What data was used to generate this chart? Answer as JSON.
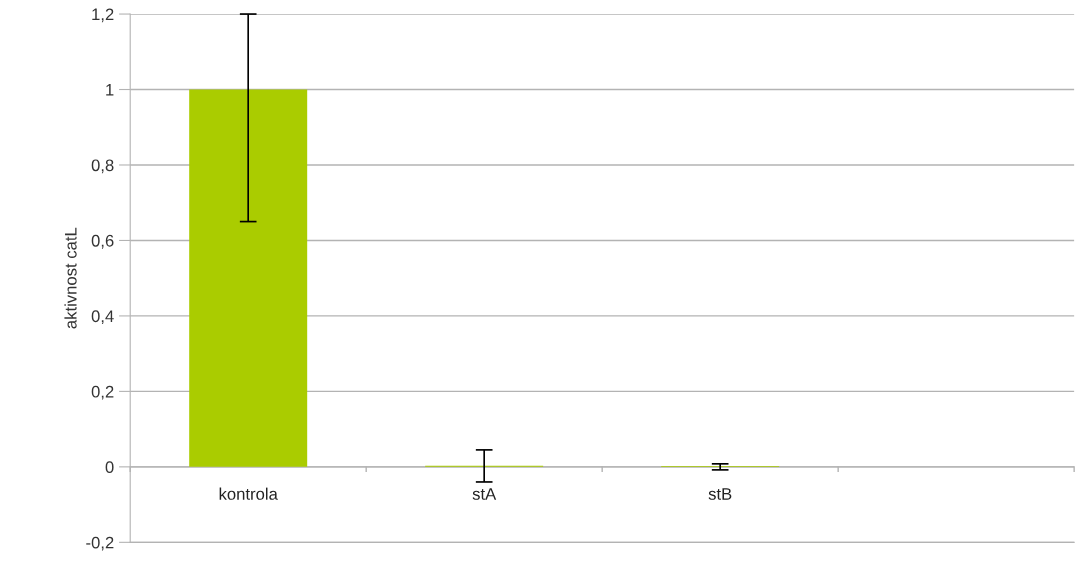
{
  "chart_data": {
    "type": "bar",
    "ylabel": "aktivnost catL",
    "categories": [
      "kontrola",
      "stA",
      "stB",
      null
    ],
    "values": [
      1.0,
      0.003,
      0.002,
      null
    ],
    "errors": [
      [
        0.65,
        1.2
      ],
      [
        -0.04,
        0.045
      ],
      [
        -0.008,
        0.008
      ],
      null
    ],
    "color": "#aacc00",
    "ylim": [
      -0.2,
      1.2
    ],
    "yticks": [
      {
        "value": -0.2,
        "label": "-0,2"
      },
      0,
      {
        "value": 0.2,
        "label": "0,2"
      },
      {
        "value": 0.4,
        "label": "0,4"
      },
      {
        "value": 0.6,
        "label": "0,6"
      },
      {
        "value": 0.8,
        "label": "0,8"
      },
      1,
      {
        "value": 1.2,
        "label": "1,2"
      }
    ],
    "grid": "y",
    "legend": false
  }
}
